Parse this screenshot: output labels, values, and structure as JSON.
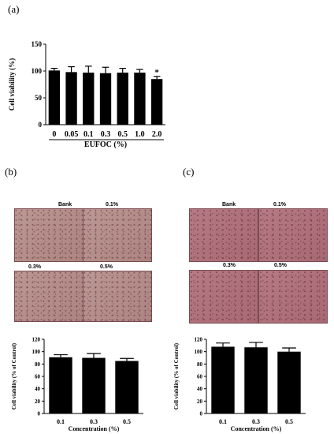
{
  "panels": {
    "a": {
      "label": "(a)"
    },
    "b": {
      "label": "(b)"
    },
    "c": {
      "label": "(c)"
    }
  },
  "micrographs": {
    "b": [
      "Bank",
      "0.1%",
      "0.3%",
      "0.5%"
    ],
    "c": [
      "Bank",
      "0.1%",
      "0.3%",
      "0.5%"
    ]
  },
  "colors": {
    "bar": "#000000",
    "micro_b": "#b58f8a",
    "micro_c": "#b1727c"
  },
  "chart_data": [
    {
      "panel": "a",
      "type": "bar",
      "categories": [
        "0",
        "0.05",
        "0.1",
        "0.3",
        "0.5",
        "1.0",
        "2.0"
      ],
      "values": [
        101,
        98,
        97,
        96,
        97,
        97,
        85
      ],
      "errors": [
        4,
        10,
        12,
        11,
        8,
        6,
        5
      ],
      "annotations": [
        {
          "category": "2.0",
          "text": "*"
        }
      ],
      "xlabel": "EUFOC (%)",
      "ylabel": "Cell viability (%)",
      "ylim": [
        0,
        150
      ],
      "yticks": [
        0,
        50,
        100,
        150
      ]
    },
    {
      "panel": "b",
      "type": "bar",
      "categories": [
        "0.1",
        "0.3",
        "0.5"
      ],
      "values": [
        91,
        90,
        85
      ],
      "errors": [
        4,
        7,
        4
      ],
      "xlabel": "Concentration (%)",
      "ylabel": "Cell viability (% of Control)",
      "ylim": [
        0,
        120
      ],
      "yticks": [
        0,
        20,
        40,
        60,
        80,
        100,
        120
      ]
    },
    {
      "panel": "c",
      "type": "bar",
      "categories": [
        "0.1",
        "0.3",
        "0.5"
      ],
      "values": [
        108,
        107,
        100
      ],
      "errors": [
        6,
        8,
        6
      ],
      "xlabel": "Concentration (%)",
      "ylabel": "Cell viability (% of Control)",
      "ylim": [
        0,
        120
      ],
      "yticks": [
        0,
        20,
        40,
        60,
        80,
        100,
        120
      ]
    }
  ]
}
